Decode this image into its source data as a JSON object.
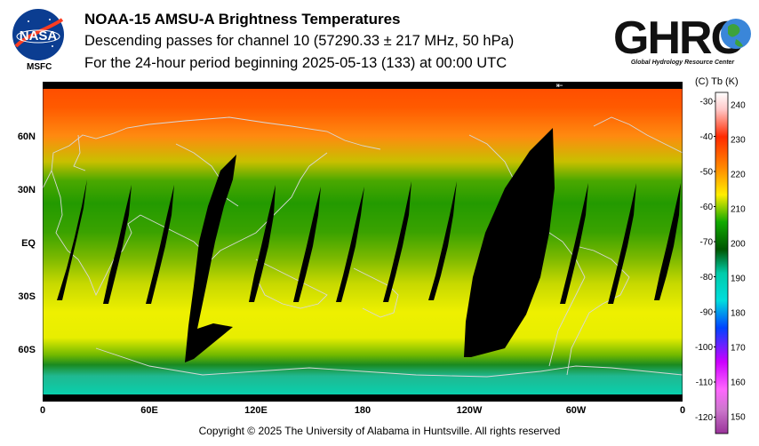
{
  "header": {
    "title": "NOAA-15 AMSU-A Brightness Temperatures",
    "line2": "Descending passes for channel 10 (57290.33 ± 217 MHz, 50 hPa)",
    "line3": "For the 24-hour period beginning 2025-05-13 (133) at 00:00 UTC"
  },
  "logos": {
    "nasa_text": "NASA",
    "msfc": "MSFC",
    "ghrc_text": "GHRC",
    "ghrc_full": "Global Hydrology Resource Center"
  },
  "map": {
    "lat_labels": [
      "60N",
      "30N",
      "EQ",
      "30S",
      "60S"
    ],
    "lon_labels": [
      "0",
      "60E",
      "120E",
      "180",
      "120W",
      "60W",
      "0"
    ],
    "arrow_glyph": "⇤"
  },
  "colorbar": {
    "header": "(C)  Tb  (K)",
    "celsius_ticks": [
      "-30",
      "-40",
      "-50",
      "-60",
      "-70",
      "-80",
      "-90",
      "-100",
      "-110",
      "-120"
    ],
    "kelvin_ticks": [
      "240",
      "230",
      "220",
      "210",
      "200",
      "190",
      "180",
      "170",
      "160",
      "150"
    ],
    "colors": {
      "top": "#ffffff",
      "red": "#ff2a00",
      "orange": "#ff8800",
      "yellow": "#ffee00",
      "green": "#11aa00",
      "darkgreen": "#005500",
      "teal": "#00ccaa",
      "blue": "#0044ff",
      "magenta": "#cc00ff",
      "purple": "#993399"
    }
  },
  "footer": {
    "copyright": "Copyright © 2025 The University of Alabama in Huntsville.  All rights reserved"
  }
}
